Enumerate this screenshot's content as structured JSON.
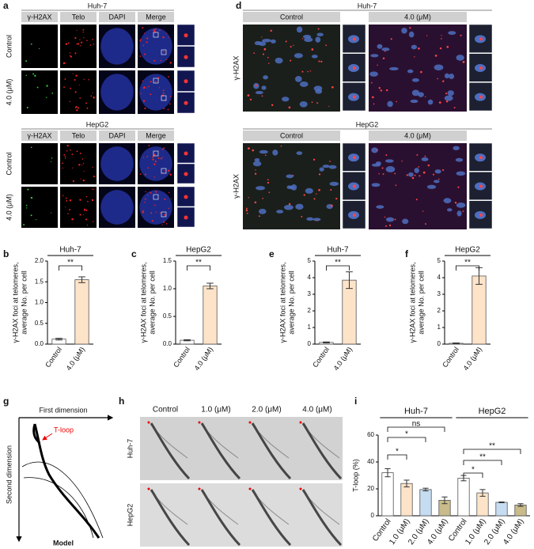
{
  "chart_data": [
    {
      "type": "bar",
      "title": "Huh-7",
      "categories": [
        "Control",
        "4.0 (μM)"
      ],
      "values": [
        0.12,
        1.55
      ],
      "errors": [
        0.02,
        0.07
      ],
      "colors": [
        "#ffffff",
        "#fde3c8"
      ],
      "ylabel": [
        "γ-H2AX foci at telomeres,",
        "average No. per cell"
      ],
      "ylim": [
        0,
        2
      ],
      "yticks": [
        {
          "value": 0,
          "label": "0.0"
        },
        0.5,
        {
          "value": 1,
          "label": "1.0"
        },
        1.5,
        {
          "value": 2,
          "label": "2.0"
        }
      ],
      "annotations": [
        "**"
      ]
    },
    {
      "type": "bar",
      "title": "HepG2",
      "categories": [
        "Control",
        "4.0 (μM)"
      ],
      "values": [
        0.07,
        1.05
      ],
      "errors": [
        0.01,
        0.05
      ],
      "colors": [
        "#ffffff",
        "#fde3c8"
      ],
      "ylabel": [
        "γ-H2AX foci at telomeres,",
        "average No. per cell"
      ],
      "ylim": [
        0,
        1.5
      ],
      "yticks": [
        {
          "value": 0,
          "label": "0.0"
        },
        0.5,
        {
          "value": 1,
          "label": "1.0"
        },
        1.5
      ],
      "annotations": [
        "**"
      ]
    },
    {
      "type": "bar",
      "title": "Huh-7",
      "categories": [
        "Control",
        "4.0 (μM)"
      ],
      "values": [
        0.1,
        3.85
      ],
      "errors": [
        0.03,
        0.5
      ],
      "colors": [
        "#ffffff",
        "#fde3c8"
      ],
      "ylabel": [
        "γ-H2AX foci at telomeres,",
        "average No. per cell"
      ],
      "ylim": [
        0,
        5
      ],
      "yticks": [
        0,
        1,
        2,
        3,
        4,
        5
      ],
      "annotations": [
        "**"
      ]
    },
    {
      "type": "bar",
      "title": "HepG2",
      "categories": [
        "Control",
        "4.0 (μM)"
      ],
      "values": [
        0.05,
        4.1
      ],
      "errors": [
        0.02,
        0.5
      ],
      "colors": [
        "#ffffff",
        "#fde3c8"
      ],
      "ylabel": [
        "γ-H2AX foci at telomeres,",
        "average No. per cell"
      ],
      "ylim": [
        0,
        5
      ],
      "yticks": [
        0,
        1,
        2,
        3,
        4,
        5
      ],
      "annotations": [
        "**"
      ]
    },
    {
      "type": "bar",
      "groups": [
        "Huh-7",
        "HepG2"
      ],
      "categories": [
        "Control",
        "1.0 (μM)",
        "2.0 (μM)",
        "4.0 (μM)",
        "Control",
        "1.0 (μM)",
        "2.0 (μM)",
        "4.0 (μM)"
      ],
      "values": [
        32,
        24,
        19.5,
        11.5,
        28,
        17,
        10,
        8
      ],
      "errors": [
        3,
        2.5,
        1,
        2.5,
        2,
        2.5,
        0.3,
        1
      ],
      "colors": [
        "#ffffff",
        "#fde3c8",
        "#c6dcf0",
        "#c9bb8a",
        "#ffffff",
        "#fde3c8",
        "#c6dcf0",
        "#c9bb8a"
      ],
      "ylabel": [
        "T-loop (%)"
      ],
      "ylim": [
        0,
        60
      ],
      "yticks": [
        0,
        20,
        40,
        60
      ],
      "annotations": [
        "ns",
        "*",
        "*",
        "*",
        "**",
        "**"
      ]
    }
  ],
  "figure": {
    "panel_labels": [
      "a",
      "d",
      "b",
      "c",
      "e",
      "f",
      "g",
      "h",
      "i"
    ],
    "a": {
      "sections": [
        {
          "title": "Huh-7",
          "columns": [
            "γ-H2AX",
            "Telo",
            "DAPI",
            "Merge"
          ],
          "rows": [
            "Control",
            "4.0 (μM)"
          ]
        },
        {
          "title": "HepG2",
          "columns": [
            "γ-H2AX",
            "Telo",
            "DAPI",
            "Merge"
          ],
          "rows": [
            "Control",
            "4.0 (μM)"
          ]
        }
      ]
    },
    "d": {
      "sections": [
        {
          "title": "Huh-7",
          "columns": [
            "Control",
            "4.0 (μM)"
          ],
          "row_label": "γ-H2AX"
        },
        {
          "title": "HepG2",
          "columns": [
            "Control",
            "4.0 (μM)"
          ],
          "row_label": "γ-H2AX"
        }
      ]
    },
    "g": {
      "x_label": "First dimension",
      "y_label": "Second dimension",
      "annotation": "T-loop",
      "caption": "Model"
    },
    "h": {
      "columns": [
        "Control",
        "1.0 (μM)",
        "2.0 (μM)",
        "4.0 (μM)"
      ],
      "rows": [
        "Huh-7",
        "HepG2"
      ]
    }
  }
}
